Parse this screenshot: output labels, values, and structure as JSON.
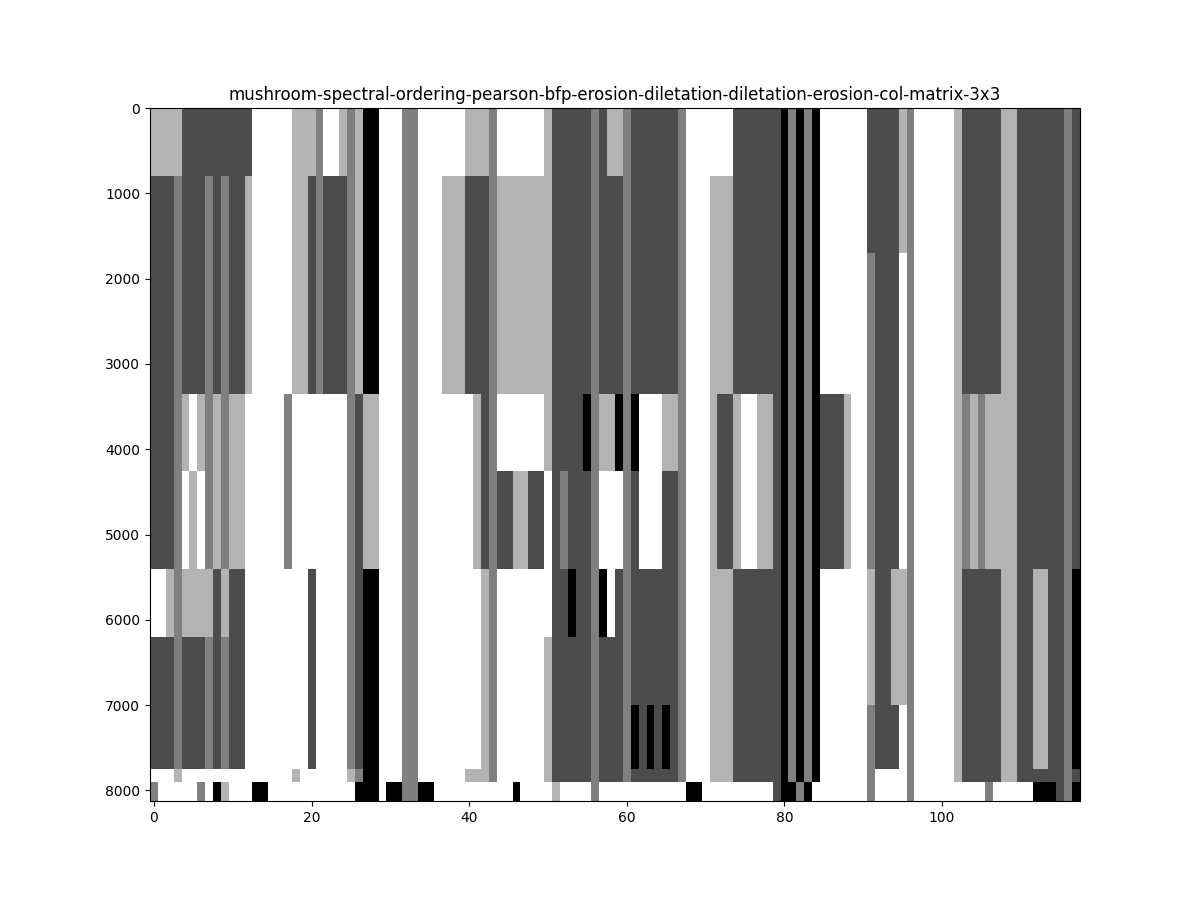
{
  "chart_data": {
    "type": "heatmap",
    "title": "mushroom-spectral-ordering-pearson-bfp-erosion-diletation-diletation-erosion-col-matrix-3x3",
    "xlim": [
      -0.5,
      117.5
    ],
    "ylim": [
      8123.5,
      -0.5
    ],
    "xticks": [
      0,
      20,
      40,
      60,
      80,
      100
    ],
    "yticks": [
      0,
      1000,
      2000,
      3000,
      4000,
      5000,
      6000,
      7000,
      8000
    ],
    "value_range": [
      0,
      1
    ],
    "row_edges": [
      -0.5,
      800,
      1700,
      2700,
      3350,
      4250,
      5400,
      6200,
      7000,
      7750,
      7900,
      8123.5
    ],
    "cells": [
      [
        0.3,
        0.3,
        0.3,
        0.3,
        0.7,
        0.7,
        0.7,
        0.7,
        0.7,
        0.7,
        0.7,
        0.7,
        0.7,
        0,
        0,
        0,
        0,
        0,
        0.3,
        0.3,
        0.3,
        0.5,
        0,
        0,
        0.3,
        0.5,
        0.3,
        1,
        1,
        0,
        0,
        0,
        0.5,
        0.5,
        0,
        0,
        0,
        0,
        0,
        0,
        0.3,
        0.3,
        0.3,
        0.5,
        0,
        0,
        0,
        0,
        0,
        0,
        0.3,
        0.7,
        0.7,
        0.7,
        0.7,
        0.7,
        0.5,
        0.7,
        0.3,
        0.3,
        0.5,
        0.7,
        0.7,
        0.7,
        0.7,
        0.7,
        0.7,
        0.5,
        0,
        0,
        0,
        0,
        0,
        0,
        0.7,
        0.7,
        0.7,
        0.7,
        0.7,
        0.7,
        1,
        0.5,
        1,
        0.5,
        1,
        0,
        0,
        0,
        0,
        0,
        0,
        0.7,
        0.7,
        0.7,
        0.7,
        0.3,
        0.5,
        0,
        0,
        0,
        0,
        0,
        0.3,
        0.7,
        0.7,
        0.7,
        0.7,
        0.7,
        0.3,
        0.3,
        0.7,
        0.7,
        0.7,
        0.7,
        0.7,
        0.7,
        0.5,
        0.7
      ],
      [
        0.7,
        0.7,
        0.7,
        0.5,
        0.7,
        0.7,
        0.7,
        0.5,
        0.7,
        0.5,
        0.7,
        0.7,
        0.3,
        0,
        0,
        0,
        0,
        0,
        0.3,
        0.3,
        0.7,
        0.5,
        0.7,
        0.7,
        0.7,
        0.5,
        0.3,
        1,
        1,
        0,
        0,
        0,
        0.5,
        0.5,
        0,
        0,
        0,
        0.3,
        0.3,
        0.3,
        0.7,
        0.7,
        0.7,
        0.5,
        0.3,
        0.3,
        0.3,
        0.3,
        0.3,
        0.3,
        0.3,
        0.7,
        0.7,
        0.7,
        0.7,
        0.7,
        0.5,
        0.7,
        0.7,
        0.7,
        0.5,
        0.7,
        0.7,
        0.7,
        0.7,
        0.7,
        0.7,
        0.5,
        0,
        0,
        0,
        0.3,
        0.3,
        0.3,
        0.7,
        0.7,
        0.7,
        0.7,
        0.7,
        0.7,
        1,
        0.5,
        1,
        0.5,
        1,
        0,
        0,
        0,
        0,
        0,
        0,
        0.7,
        0.7,
        0.7,
        0.7,
        0.3,
        0.5,
        0,
        0,
        0,
        0,
        0,
        0.3,
        0.7,
        0.7,
        0.7,
        0.7,
        0.7,
        0.3,
        0.3,
        0.7,
        0.7,
        0.7,
        0.7,
        0.7,
        0.7,
        0.5,
        0.7
      ],
      [
        0.7,
        0.7,
        0.7,
        0.5,
        0.7,
        0.7,
        0.7,
        0.5,
        0.7,
        0.5,
        0.7,
        0.7,
        0.3,
        0,
        0,
        0,
        0,
        0,
        0.3,
        0.3,
        0.7,
        0.5,
        0.7,
        0.7,
        0.7,
        0.5,
        0.3,
        1,
        1,
        0,
        0,
        0,
        0.5,
        0.5,
        0,
        0,
        0,
        0.3,
        0.3,
        0.3,
        0.7,
        0.7,
        0.7,
        0.5,
        0.3,
        0.3,
        0.3,
        0.3,
        0.3,
        0.3,
        0.3,
        0.7,
        0.7,
        0.7,
        0.7,
        0.7,
        0.5,
        0.7,
        0.7,
        0.7,
        0.5,
        0.7,
        0.7,
        0.7,
        0.7,
        0.7,
        0.7,
        0.5,
        0,
        0,
        0,
        0.3,
        0.3,
        0.3,
        0.7,
        0.7,
        0.7,
        0.7,
        0.7,
        0.7,
        1,
        0.5,
        1,
        0.5,
        1,
        0,
        0,
        0,
        0,
        0,
        0,
        0.5,
        0.7,
        0.7,
        0.7,
        0,
        0.5,
        0,
        0,
        0,
        0,
        0,
        0.3,
        0.7,
        0.7,
        0.7,
        0.7,
        0.7,
        0.3,
        0.3,
        0.7,
        0.7,
        0.7,
        0.7,
        0.7,
        0.7,
        0.5,
        0.7
      ],
      [
        0.7,
        0.7,
        0.7,
        0.5,
        0.7,
        0.7,
        0.7,
        0.5,
        0.7,
        0.5,
        0.7,
        0.7,
        0.3,
        0,
        0,
        0,
        0,
        0,
        0.3,
        0.3,
        0.7,
        0.5,
        0.7,
        0.7,
        0.7,
        0.5,
        0.3,
        1,
        1,
        0,
        0,
        0,
        0.5,
        0.5,
        0,
        0,
        0,
        0.3,
        0.3,
        0.3,
        0.7,
        0.7,
        0.7,
        0.5,
        0.3,
        0.3,
        0.3,
        0.3,
        0.3,
        0.3,
        0.3,
        0.7,
        0.7,
        0.7,
        0.7,
        0.7,
        0.5,
        0.7,
        0.7,
        0.7,
        0.5,
        0.7,
        0.7,
        0.7,
        0.7,
        0.7,
        0.7,
        0.5,
        0,
        0,
        0,
        0.3,
        0.3,
        0.3,
        0.7,
        0.7,
        0.7,
        0.7,
        0.7,
        0.7,
        1,
        0.5,
        1,
        0.5,
        1,
        0,
        0,
        0,
        0,
        0,
        0,
        0.5,
        0.7,
        0.7,
        0.7,
        0,
        0.5,
        0,
        0,
        0,
        0,
        0,
        0.3,
        0.7,
        0.7,
        0.7,
        0.7,
        0.7,
        0.3,
        0.3,
        0.7,
        0.7,
        0.7,
        0.7,
        0.7,
        0.7,
        0.5,
        0.7
      ],
      [
        0.7,
        0.7,
        0.7,
        0.5,
        0.3,
        0,
        0.3,
        0.5,
        0.3,
        0.5,
        0.3,
        0.3,
        0,
        0,
        0,
        0,
        0,
        0.5,
        0,
        0,
        0,
        0,
        0,
        0,
        0,
        0.5,
        0.7,
        0.3,
        0.3,
        0,
        0,
        0,
        0.5,
        0.5,
        0,
        0,
        0,
        0,
        0,
        0,
        0,
        0.3,
        0.7,
        0.5,
        0,
        0,
        0,
        0,
        0,
        0,
        0.3,
        0.7,
        0.7,
        0.7,
        0.7,
        1,
        0.5,
        0.3,
        0.3,
        1,
        0.5,
        1,
        0,
        0,
        0,
        0.3,
        0.3,
        0.5,
        0,
        0,
        0,
        0.3,
        0.7,
        0.7,
        0.3,
        0,
        0,
        0.3,
        0.3,
        0.7,
        1,
        0.5,
        1,
        0.5,
        1,
        0.7,
        0.7,
        0.7,
        0.3,
        0,
        0,
        0.5,
        0.7,
        0.7,
        0.7,
        0,
        0.5,
        0,
        0,
        0,
        0,
        0,
        0.3,
        0.5,
        0.3,
        0.5,
        0.3,
        0.3,
        0.3,
        0.3,
        0.7,
        0.7,
        0.7,
        0.7,
        0.7,
        0.7,
        0.5,
        0.7
      ],
      [
        0.7,
        0.7,
        0.7,
        0.5,
        0,
        0.3,
        0,
        0.5,
        0.3,
        0.5,
        0.3,
        0.3,
        0,
        0,
        0,
        0,
        0,
        0.5,
        0,
        0,
        0,
        0,
        0,
        0,
        0,
        0.5,
        0.7,
        0.3,
        0.3,
        0,
        0,
        0,
        0.5,
        0.5,
        0,
        0,
        0,
        0,
        0,
        0,
        0,
        0.3,
        0.7,
        0.5,
        0.7,
        0.7,
        0.3,
        0.3,
        0.7,
        0.7,
        0,
        0.7,
        0.5,
        0.7,
        0.7,
        0.7,
        0.5,
        0,
        0,
        0,
        0.5,
        0.7,
        0,
        0,
        0,
        0.7,
        0.7,
        0.5,
        0,
        0,
        0,
        0.3,
        0.7,
        0.7,
        0.3,
        0,
        0,
        0.3,
        0.3,
        0.7,
        1,
        0.5,
        1,
        0.5,
        1,
        0.7,
        0.7,
        0.7,
        0.3,
        0,
        0,
        0.5,
        0.7,
        0.7,
        0.7,
        0,
        0.5,
        0,
        0,
        0,
        0,
        0,
        0.3,
        0.5,
        0.3,
        0.5,
        0.3,
        0.3,
        0.3,
        0.3,
        0.7,
        0.7,
        0.7,
        0.7,
        0.7,
        0.7,
        0.5,
        0.7
      ],
      [
        0,
        0,
        0.3,
        0.5,
        0.3,
        0.3,
        0.3,
        0.3,
        0.7,
        0.3,
        0.7,
        0.7,
        0,
        0,
        0,
        0,
        0,
        0,
        0,
        0,
        0.7,
        0,
        0,
        0,
        0,
        0.5,
        0.7,
        1,
        1,
        0,
        0,
        0,
        0.5,
        0.5,
        0,
        0,
        0,
        0,
        0,
        0,
        0,
        0,
        0.3,
        0.5,
        0,
        0,
        0,
        0,
        0,
        0,
        0,
        0.7,
        0.7,
        1,
        0.7,
        0.7,
        0.5,
        1,
        0,
        0.7,
        0.5,
        0.7,
        0.7,
        0.7,
        0.7,
        0.7,
        0.7,
        0.5,
        0,
        0,
        0,
        0.3,
        0.3,
        0.3,
        0.7,
        0.7,
        0.7,
        0.7,
        0.7,
        0.7,
        1,
        0.5,
        1,
        0.5,
        1,
        0,
        0,
        0,
        0,
        0,
        0,
        0.3,
        0.7,
        0.7,
        0.3,
        0.3,
        0.5,
        0,
        0,
        0,
        0,
        0,
        0.3,
        0.7,
        0.7,
        0.7,
        0.7,
        0.7,
        0.3,
        0.3,
        0.7,
        0.7,
        0.3,
        0.3,
        0.7,
        0.7,
        0.5,
        1
      ],
      [
        0.7,
        0.7,
        0.7,
        0.5,
        0.7,
        0.7,
        0.7,
        0.5,
        0.7,
        0.5,
        0.7,
        0.7,
        0,
        0,
        0,
        0,
        0,
        0,
        0,
        0,
        0.7,
        0,
        0,
        0,
        0,
        0.5,
        0.7,
        1,
        1,
        0,
        0,
        0,
        0.5,
        0.5,
        0,
        0,
        0,
        0,
        0,
        0,
        0,
        0,
        0.3,
        0.5,
        0,
        0,
        0,
        0,
        0,
        0,
        0.3,
        0.7,
        0.7,
        0.7,
        0.7,
        0.7,
        0.5,
        0.7,
        0.7,
        0.7,
        0.5,
        0.7,
        0.7,
        0.7,
        0.7,
        0.7,
        0.7,
        0.5,
        0,
        0,
        0,
        0.3,
        0.3,
        0.3,
        0.7,
        0.7,
        0.7,
        0.7,
        0.7,
        0.7,
        1,
        0.5,
        1,
        0.5,
        1,
        0,
        0,
        0,
        0,
        0,
        0,
        0.3,
        0.7,
        0.7,
        0.3,
        0.3,
        0.5,
        0,
        0,
        0,
        0,
        0,
        0.3,
        0.7,
        0.7,
        0.7,
        0.7,
        0.7,
        0.3,
        0.3,
        0.7,
        0.7,
        0.3,
        0.3,
        0.7,
        0.7,
        0.5,
        1
      ],
      [
        0.7,
        0.7,
        0.7,
        0.5,
        0.7,
        0.7,
        0.7,
        0.5,
        0.7,
        0.5,
        0.7,
        0.7,
        0,
        0,
        0,
        0,
        0,
        0,
        0,
        0,
        0.7,
        0,
        0,
        0,
        0,
        0.5,
        0.7,
        1,
        1,
        0,
        0,
        0,
        0.5,
        0.5,
        0,
        0,
        0,
        0,
        0,
        0,
        0,
        0,
        0.3,
        0.5,
        0,
        0,
        0,
        0,
        0,
        0,
        0.3,
        0.7,
        0.7,
        0.7,
        0.7,
        0.7,
        0.5,
        0.7,
        0.7,
        0.7,
        0.5,
        1,
        0.7,
        1,
        0.7,
        1,
        0.7,
        0.5,
        0,
        0,
        0,
        0.3,
        0.3,
        0.3,
        0.7,
        0.7,
        0.7,
        0.7,
        0.7,
        0.7,
        1,
        0.5,
        1,
        0.5,
        1,
        0,
        0,
        0,
        0,
        0,
        0,
        0.5,
        0.7,
        0.7,
        0.7,
        0,
        0.5,
        0,
        0,
        0,
        0,
        0,
        0.3,
        0.7,
        0.7,
        0.7,
        0.7,
        0.7,
        0.3,
        0.3,
        0.7,
        0.7,
        0.3,
        0.3,
        0.7,
        0.7,
        0.5,
        1
      ],
      [
        0,
        0,
        0,
        0.3,
        0,
        0,
        0,
        0,
        0,
        0,
        0,
        0,
        0,
        0,
        0,
        0,
        0,
        0,
        0.3,
        0,
        0,
        0,
        0,
        0,
        0,
        0.3,
        0.5,
        1,
        1,
        0,
        0,
        0,
        0.5,
        0.5,
        0,
        0,
        0,
        0,
        0,
        0,
        0.3,
        0.3,
        0.3,
        0.5,
        0,
        0,
        0,
        0,
        0,
        0,
        0.3,
        0.7,
        0.7,
        0.7,
        0.7,
        0.7,
        0.5,
        0.7,
        0.7,
        0.7,
        0.5,
        0.7,
        0.7,
        0.7,
        0.7,
        0.7,
        0.7,
        0.5,
        0,
        0,
        0,
        0.3,
        0.3,
        0.3,
        0.7,
        0.7,
        0.7,
        0.7,
        0.7,
        0.7,
        1,
        0.5,
        1,
        0.5,
        1,
        0,
        0,
        0,
        0,
        0,
        0,
        0.5,
        0,
        0,
        0,
        0,
        0.5,
        0,
        0,
        0,
        0,
        0,
        0.3,
        0.7,
        0.7,
        0.7,
        0.7,
        0.7,
        0.3,
        0.3,
        0.7,
        0.7,
        0.7,
        0.7,
        0.7,
        0.7,
        0.5,
        0.7
      ],
      [
        0.5,
        0,
        0,
        0,
        0,
        0,
        0.5,
        0,
        1,
        0.3,
        0,
        0,
        0,
        1,
        1,
        0,
        0,
        0,
        0,
        0,
        0,
        0,
        0,
        0,
        0,
        0,
        1,
        1,
        1,
        0,
        1,
        1,
        0.5,
        0.5,
        1,
        1,
        0,
        0,
        0,
        0,
        0,
        0,
        0,
        0,
        0,
        0,
        1,
        0,
        0,
        0,
        0,
        0.3,
        0,
        0,
        0,
        0,
        0.5,
        0,
        0,
        0,
        0,
        0,
        0,
        0,
        0,
        0,
        0,
        0,
        1,
        1,
        0,
        0,
        0,
        0,
        0,
        0,
        0,
        0,
        0,
        0.7,
        1,
        1,
        0.5,
        1,
        0,
        0,
        0,
        0,
        0,
        0,
        0,
        0.5,
        0,
        0,
        0,
        0,
        0.5,
        0,
        0,
        0,
        0,
        0,
        0,
        0,
        0,
        0,
        0.5,
        0,
        0,
        0,
        0,
        0,
        1,
        1,
        1,
        0.7,
        0.5,
        1
      ]
    ]
  }
}
